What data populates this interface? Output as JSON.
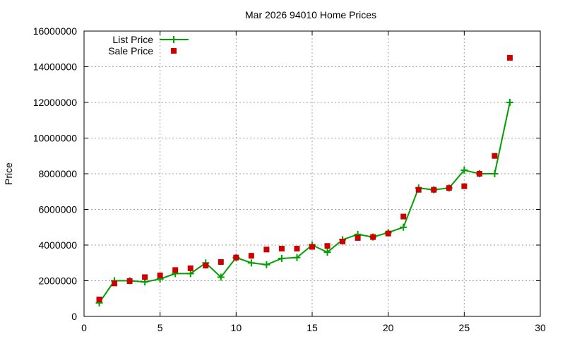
{
  "chart_data": {
    "type": "line",
    "title": "Mar 2026 94010 Home Prices",
    "xlabel": "",
    "ylabel": "Price",
    "xlim": [
      0,
      30
    ],
    "ylim": [
      0,
      16000000
    ],
    "xticks": [
      0,
      5,
      10,
      15,
      20,
      25,
      30
    ],
    "yticks": [
      0,
      2000000,
      4000000,
      6000000,
      8000000,
      10000000,
      12000000,
      14000000,
      16000000
    ],
    "grid": true,
    "legend_position": "top-left",
    "x": [
      1,
      2,
      3,
      4,
      5,
      6,
      7,
      8,
      9,
      10,
      11,
      12,
      13,
      14,
      15,
      16,
      17,
      18,
      19,
      20,
      21,
      22,
      23,
      24,
      25,
      26,
      27,
      28
    ],
    "series": [
      {
        "name": "List Price",
        "style": "linespoints",
        "color": "#00a000",
        "marker": "plus",
        "values": [
          760000,
          2000000,
          2000000,
          1930000,
          2100000,
          2400000,
          2400000,
          3000000,
          2200000,
          3300000,
          3000000,
          2900000,
          3250000,
          3300000,
          4000000,
          3600000,
          4300000,
          4600000,
          4450000,
          4700000,
          5000000,
          7200000,
          7100000,
          7200000,
          8200000,
          8000000,
          8000000,
          12000000
        ]
      },
      {
        "name": "Sale Price",
        "style": "points",
        "color": "#cc0000",
        "marker": "square",
        "values": [
          950000,
          1850000,
          1980000,
          2200000,
          2300000,
          2600000,
          2700000,
          2850000,
          3050000,
          3300000,
          3400000,
          3750000,
          3800000,
          3800000,
          3900000,
          3950000,
          4200000,
          4400000,
          4450000,
          4650000,
          5600000,
          7100000,
          7100000,
          7200000,
          7300000,
          8000000,
          9000000,
          14500000
        ]
      }
    ]
  }
}
